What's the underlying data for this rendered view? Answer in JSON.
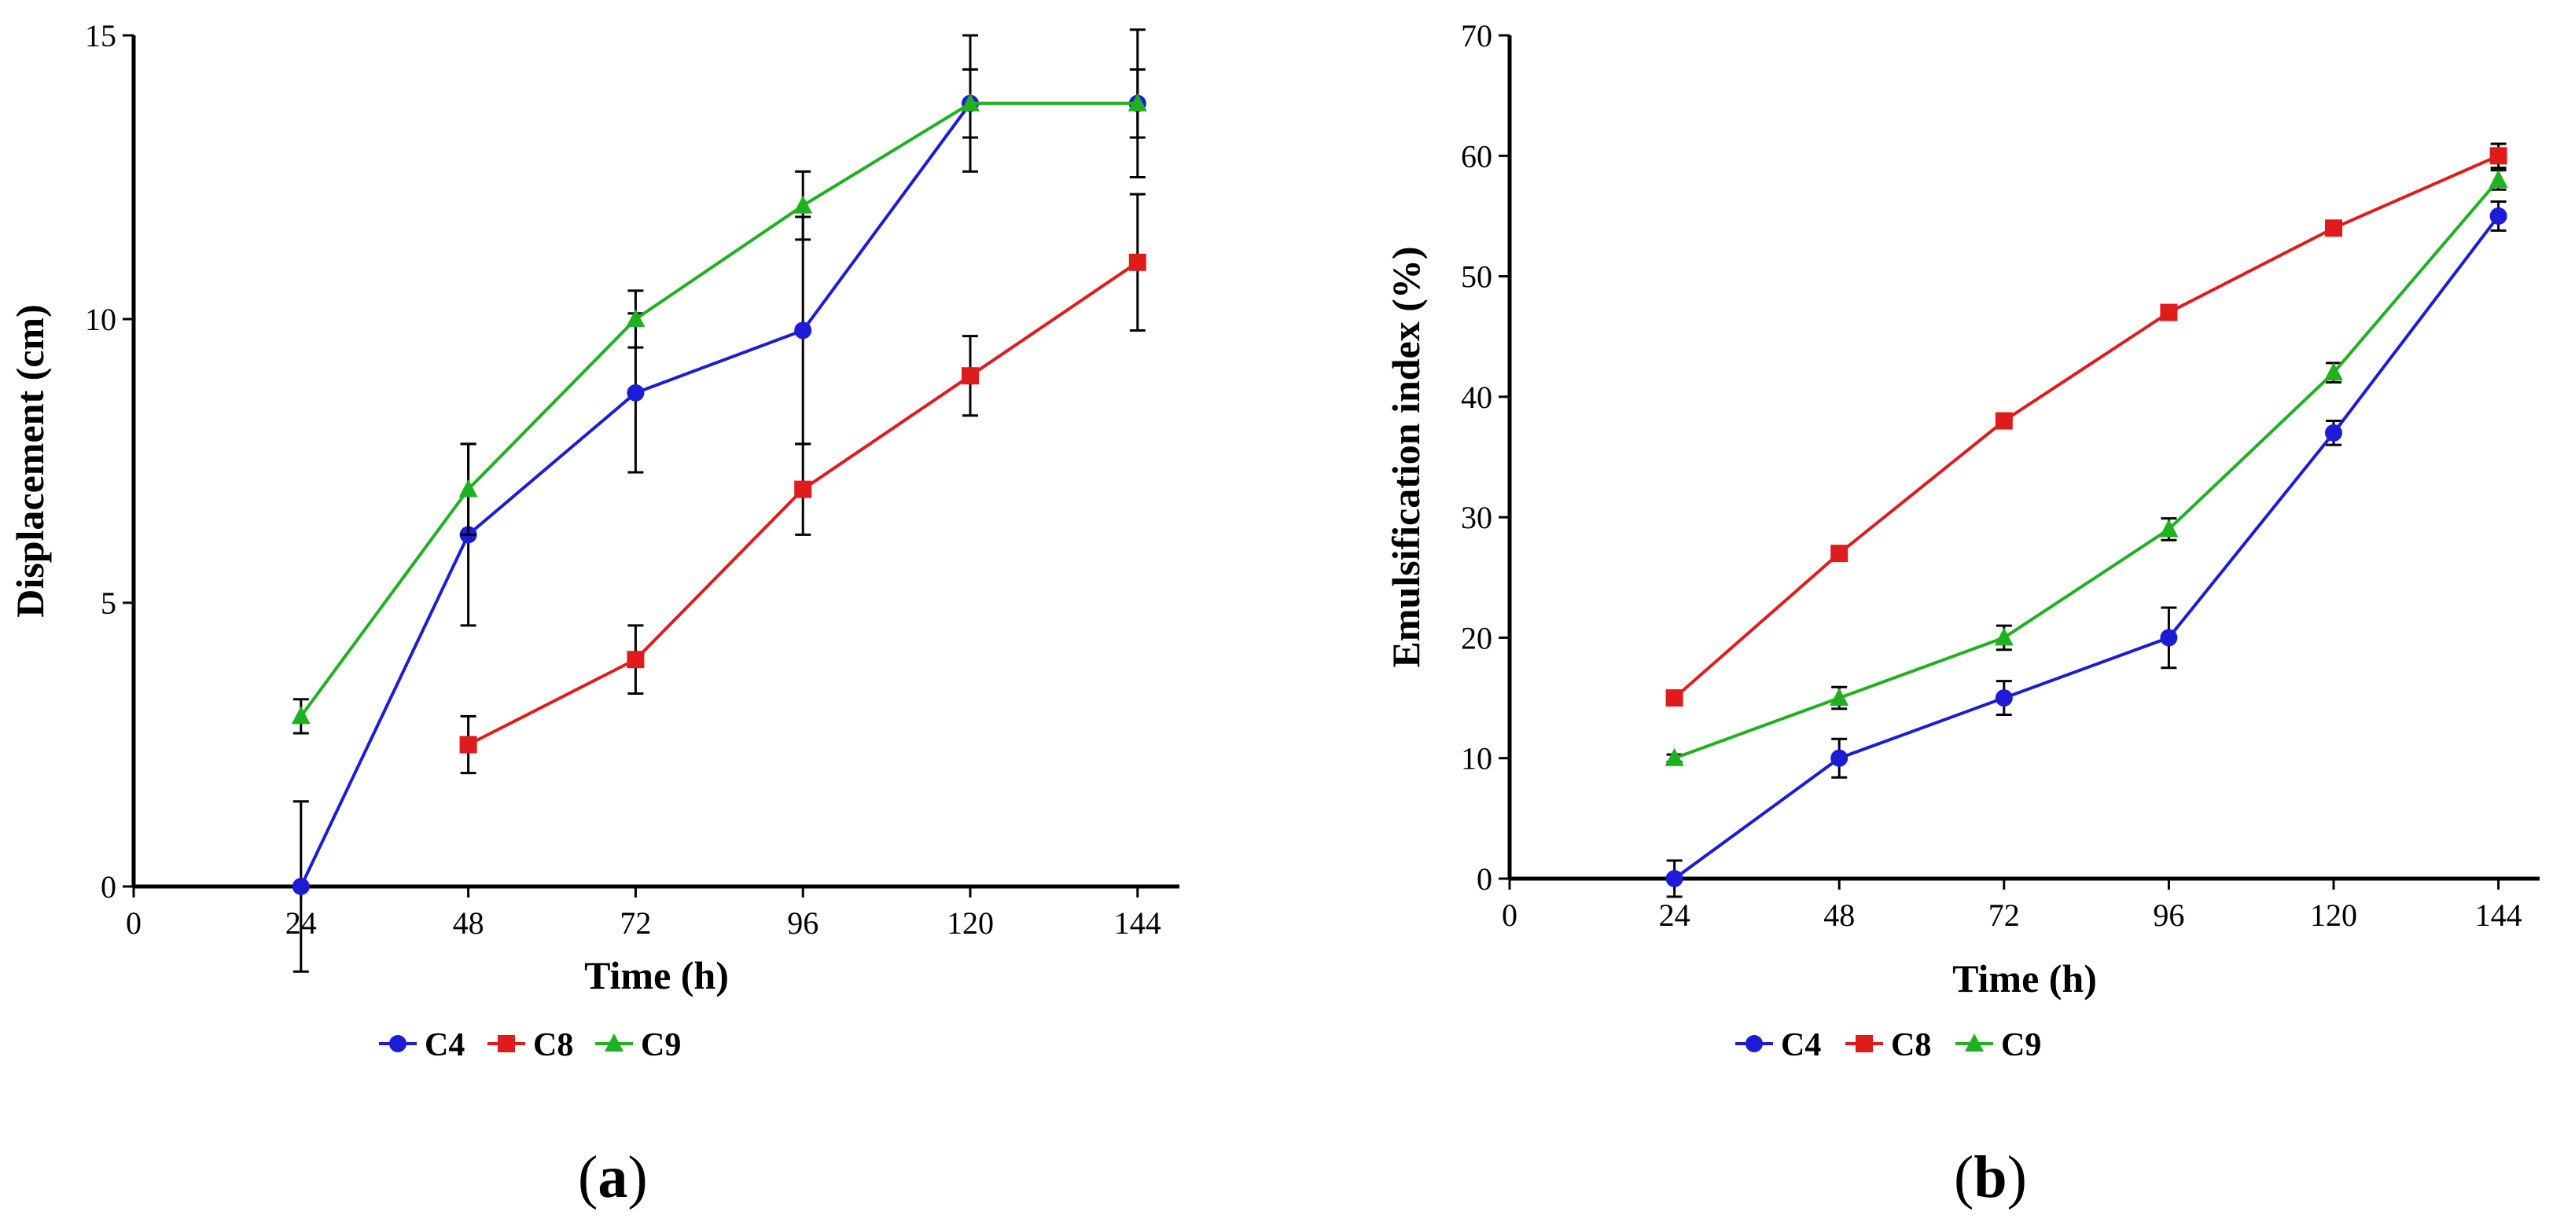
{
  "chart_data": [
    {
      "type": "line",
      "panel_label": "a",
      "title": "",
      "xlabel": "Time (h)",
      "ylabel": "Displacement (cm)",
      "xlim": [
        0,
        150
      ],
      "ylim": [
        0,
        15
      ],
      "x_ticks": [
        0,
        24,
        48,
        72,
        96,
        120,
        144
      ],
      "y_ticks": [
        0,
        5,
        10,
        15
      ],
      "grid": false,
      "legend_position": "bottom-center",
      "series": [
        {
          "name": "C4",
          "color": "#1c1cd6",
          "marker": "circle",
          "x": [
            24,
            48,
            72,
            96,
            120,
            144
          ],
          "y": [
            0,
            6.2,
            8.7,
            9.8,
            13.8,
            13.8
          ],
          "err": [
            1.5,
            1.6,
            1.4,
            2.0,
            0.6,
            0.6
          ]
        },
        {
          "name": "C8",
          "color": "#e01b1b",
          "marker": "square",
          "x": [
            48,
            72,
            96,
            120,
            144
          ],
          "y": [
            2.5,
            4.0,
            7.0,
            9.0,
            11.0
          ],
          "err": [
            0.5,
            0.6,
            0.8,
            0.7,
            1.2
          ]
        },
        {
          "name": "C9",
          "color": "#1fb11f",
          "marker": "triangle",
          "x": [
            24,
            48,
            72,
            96,
            120,
            144
          ],
          "y": [
            3.0,
            7.0,
            10.0,
            12.0,
            13.8,
            13.8
          ],
          "err": [
            0.3,
            0.8,
            0.5,
            0.6,
            1.2,
            1.3
          ]
        }
      ]
    },
    {
      "type": "line",
      "panel_label": "b",
      "title": "",
      "xlabel": "Time (h)",
      "ylabel": "Emulsification index (%)",
      "xlim": [
        0,
        150
      ],
      "ylim": [
        0,
        70
      ],
      "x_ticks": [
        0,
        24,
        48,
        72,
        96,
        120,
        144
      ],
      "y_ticks": [
        0,
        10,
        20,
        30,
        40,
        50,
        60,
        70
      ],
      "grid": false,
      "legend_position": "bottom-center",
      "series": [
        {
          "name": "C4",
          "color": "#1c1cd6",
          "marker": "circle",
          "x": [
            24,
            48,
            72,
            96,
            120,
            144
          ],
          "y": [
            0,
            10,
            15,
            20,
            37,
            55
          ],
          "err": [
            1.5,
            1.6,
            1.4,
            2.5,
            1.0,
            1.2
          ]
        },
        {
          "name": "C8",
          "color": "#e01b1b",
          "marker": "square",
          "x": [
            24,
            48,
            72,
            96,
            120,
            144
          ],
          "y": [
            15,
            27,
            38,
            47,
            54,
            60
          ],
          "err": [
            0.3,
            0.3,
            0.3,
            0.6,
            0.3,
            1.0
          ]
        },
        {
          "name": "C9",
          "color": "#1fb11f",
          "marker": "triangle",
          "x": [
            24,
            48,
            72,
            96,
            120,
            144
          ],
          "y": [
            10,
            15,
            20,
            29,
            42,
            58
          ],
          "err": [
            0.3,
            0.9,
            1.0,
            0.9,
            0.8,
            0.8
          ]
        }
      ]
    }
  ]
}
